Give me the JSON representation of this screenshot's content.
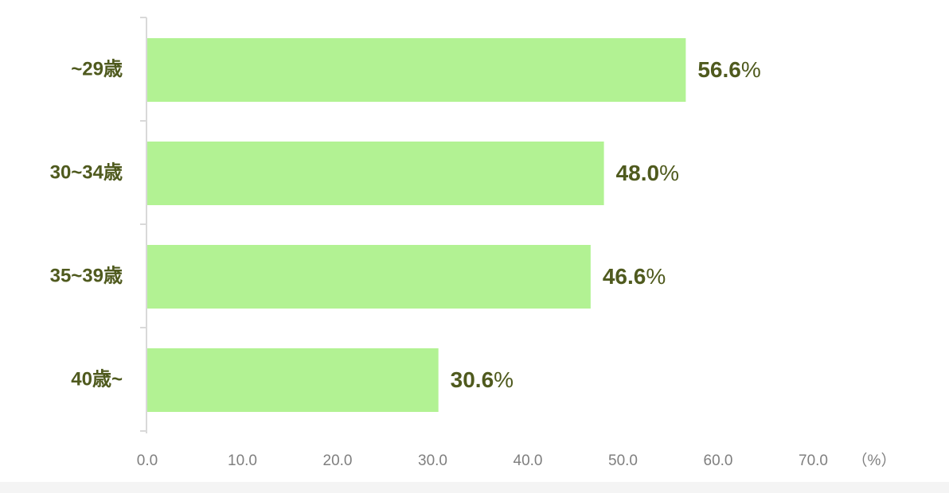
{
  "chart_data": {
    "type": "bar",
    "orientation": "horizontal",
    "categories": [
      "~29歳",
      "30~34歳",
      "35~39歳",
      "40歳~"
    ],
    "values": [
      56.6,
      48.0,
      46.6,
      30.6
    ],
    "value_labels": [
      "56.6",
      "48.0",
      "46.6",
      "30.6"
    ],
    "value_suffix": "%",
    "xlim": [
      0,
      70
    ],
    "x_ticks": [
      0,
      10,
      20,
      30,
      40,
      50,
      60,
      70
    ],
    "x_tick_labels": [
      "0.0",
      "10.0",
      "20.0",
      "30.0",
      "40.0",
      "50.0",
      "60.0",
      "70.0"
    ],
    "unit_label": "（%）",
    "title": "",
    "xlabel": "",
    "ylabel": "",
    "grid": false,
    "legend": "none",
    "colors": {
      "bar": "#b2f293",
      "category_label": "#4f5a1e",
      "value_label": "#4f5a1e",
      "tick_label": "#7f7f7f",
      "axis_line": "#d9d9d9"
    }
  }
}
